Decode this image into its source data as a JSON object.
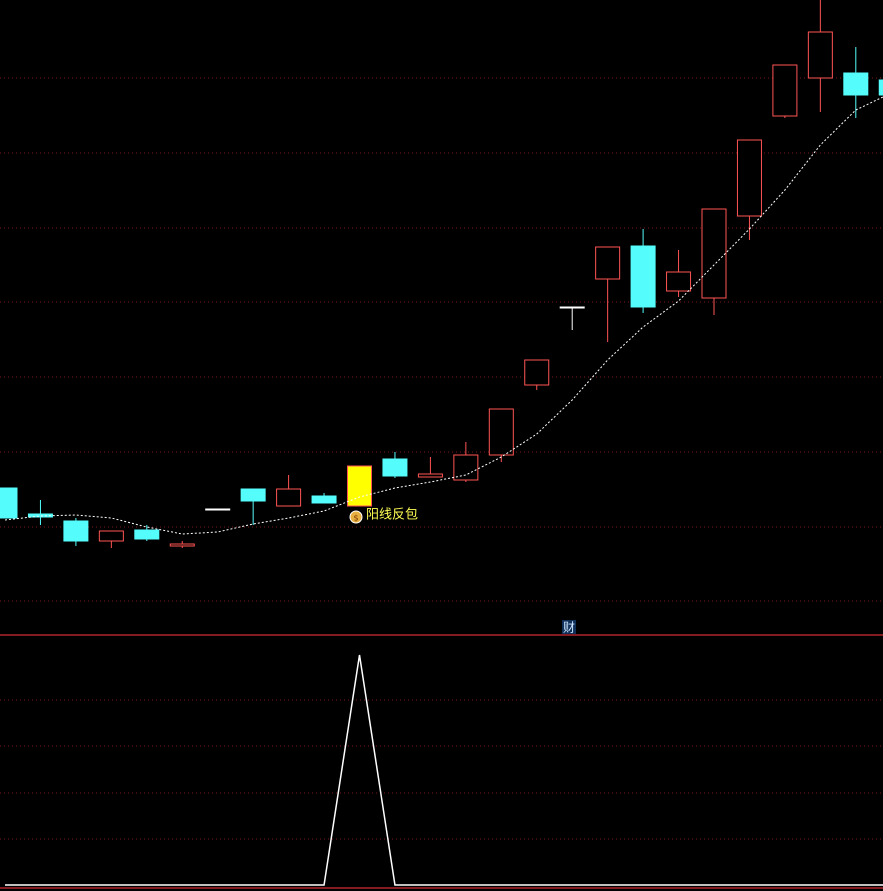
{
  "chart_data": [
    {
      "type": "candlestick",
      "annotation": "阳线反包",
      "ylim": [
        0,
        620
      ],
      "up_color": "#ff5454",
      "down_color": "#54fcfc",
      "flat_color": "#ffffff",
      "signal_color": "#ffff00",
      "signal_index": 10,
      "open": [
        132,
        106,
        99,
        79,
        90,
        74,
        111,
        131,
        114,
        124,
        114,
        161,
        143,
        140,
        165,
        235,
        313,
        341,
        374,
        329,
        322,
        404,
        504,
        542,
        547,
        540
      ],
      "close": [
        102,
        103,
        79,
        89,
        81,
        76,
        111,
        119,
        131,
        117,
        154,
        144,
        146,
        165,
        211,
        260,
        313,
        373,
        313,
        348,
        411,
        480,
        555,
        588,
        525,
        525
      ],
      "high": [
        132,
        120,
        102,
        89,
        95,
        79,
        111,
        131,
        145,
        127,
        154,
        168,
        163,
        178,
        211,
        260,
        313,
        373,
        391,
        370,
        411,
        480,
        555,
        620,
        573,
        545
      ],
      "low": [
        102,
        95,
        74,
        72,
        79,
        72,
        111,
        95,
        114,
        117,
        114,
        142,
        143,
        138,
        158,
        230,
        290,
        278,
        307,
        323,
        305,
        380,
        502,
        508,
        502,
        520
      ],
      "ma": [
        100,
        104,
        105,
        102,
        93,
        86,
        88,
        96,
        102,
        109,
        123,
        132,
        138,
        145,
        163,
        186,
        220,
        260,
        293,
        319,
        355,
        391,
        430,
        475,
        510,
        527
      ],
      "ma_color": "#ffffff"
    },
    {
      "type": "line",
      "label": "财",
      "ylim": [
        0,
        1
      ],
      "color": "#ffffff",
      "values": [
        0,
        0,
        0,
        0,
        0,
        0,
        0,
        0,
        0,
        0,
        1,
        0,
        0,
        0,
        0,
        0,
        0,
        0,
        0,
        0,
        0,
        0,
        0,
        0,
        0,
        0
      ]
    }
  ]
}
